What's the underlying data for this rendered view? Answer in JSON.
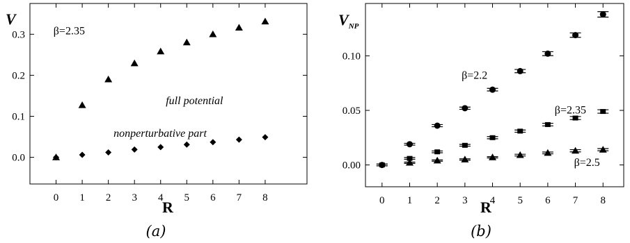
{
  "chart_data": [
    {
      "type": "scatter",
      "panel_label": "(a)",
      "xlabel": "R",
      "ylabel": "V",
      "xlim": [
        -1,
        9.6
      ],
      "ylim": [
        -0.065,
        0.375
      ],
      "xticks": [
        0,
        1,
        2,
        3,
        4,
        5,
        6,
        7,
        8
      ],
      "yticks": [
        0.0,
        0.1,
        0.2,
        0.3
      ],
      "ytick_labels": [
        "0.0",
        "0.1",
        "0.2",
        "0.3"
      ],
      "annotations": [
        {
          "text": "β=2.35",
          "italic": false,
          "x": -0.1,
          "y": 0.3
        },
        {
          "text": "full potential",
          "italic": true,
          "x": 4.2,
          "y": 0.13
        },
        {
          "text": "nonperturbative part",
          "italic": true,
          "x": 2.2,
          "y": 0.05
        }
      ],
      "series": [
        {
          "marker": "triangle",
          "x": [
            0,
            1,
            2,
            3,
            4,
            5,
            6,
            7,
            8
          ],
          "values": [
            0.0,
            0.127,
            0.19,
            0.229,
            0.258,
            0.28,
            0.3,
            0.316,
            0.331
          ]
        },
        {
          "marker": "diamond",
          "x": [
            0,
            1,
            2,
            3,
            4,
            5,
            6,
            7,
            8
          ],
          "values": [
            0.0,
            0.006,
            0.012,
            0.019,
            0.025,
            0.031,
            0.037,
            0.043,
            0.049
          ]
        }
      ]
    },
    {
      "type": "scatter",
      "panel_label": "(b)",
      "xlabel": "R",
      "ylabel": "V",
      "ylabel_sub": "NP",
      "xlim": [
        -0.6,
        8.75
      ],
      "ylim": [
        -0.02,
        0.148
      ],
      "xticks": [
        0,
        1,
        2,
        3,
        4,
        5,
        6,
        7,
        8
      ],
      "yticks": [
        0.0,
        0.05,
        0.1
      ],
      "ytick_labels": [
        "0.00",
        "0.05",
        "0.10"
      ],
      "annotations": [
        {
          "text": "β=2.2",
          "x": 2.88,
          "y": 0.079
        },
        {
          "text": "β=2.35",
          "x": 6.25,
          "y": 0.047
        },
        {
          "text": "β=2.5",
          "x": 6.95,
          "y": -0.001
        }
      ],
      "series": [
        {
          "marker": "circle",
          "x": [
            0,
            1,
            2,
            3,
            4,
            5,
            6,
            7,
            8
          ],
          "values": [
            0.0,
            0.019,
            0.036,
            0.052,
            0.069,
            0.086,
            0.102,
            0.119,
            0.138
          ],
          "err": [
            0.0008,
            0.0008,
            0.001,
            0.001,
            0.0012,
            0.0015,
            0.0018,
            0.002,
            0.0025
          ]
        },
        {
          "marker": "square",
          "x": [
            0,
            1,
            2,
            3,
            4,
            5,
            6,
            7,
            8
          ],
          "values": [
            0.0,
            0.006,
            0.012,
            0.018,
            0.025,
            0.031,
            0.037,
            0.043,
            0.049
          ],
          "err": [
            0.0008,
            0.0008,
            0.0008,
            0.0008,
            0.001,
            0.001,
            0.0012,
            0.0014,
            0.0016
          ]
        },
        {
          "marker": "triangle",
          "x": [
            1,
            2,
            3,
            4,
            5,
            6,
            7,
            8
          ],
          "values": [
            0.002,
            0.004,
            0.005,
            0.007,
            0.009,
            0.011,
            0.013,
            0.014
          ],
          "err": [
            0.0006,
            0.0006,
            0.0006,
            0.0006,
            0.0008,
            0.0008,
            0.001,
            0.001
          ]
        }
      ]
    }
  ]
}
